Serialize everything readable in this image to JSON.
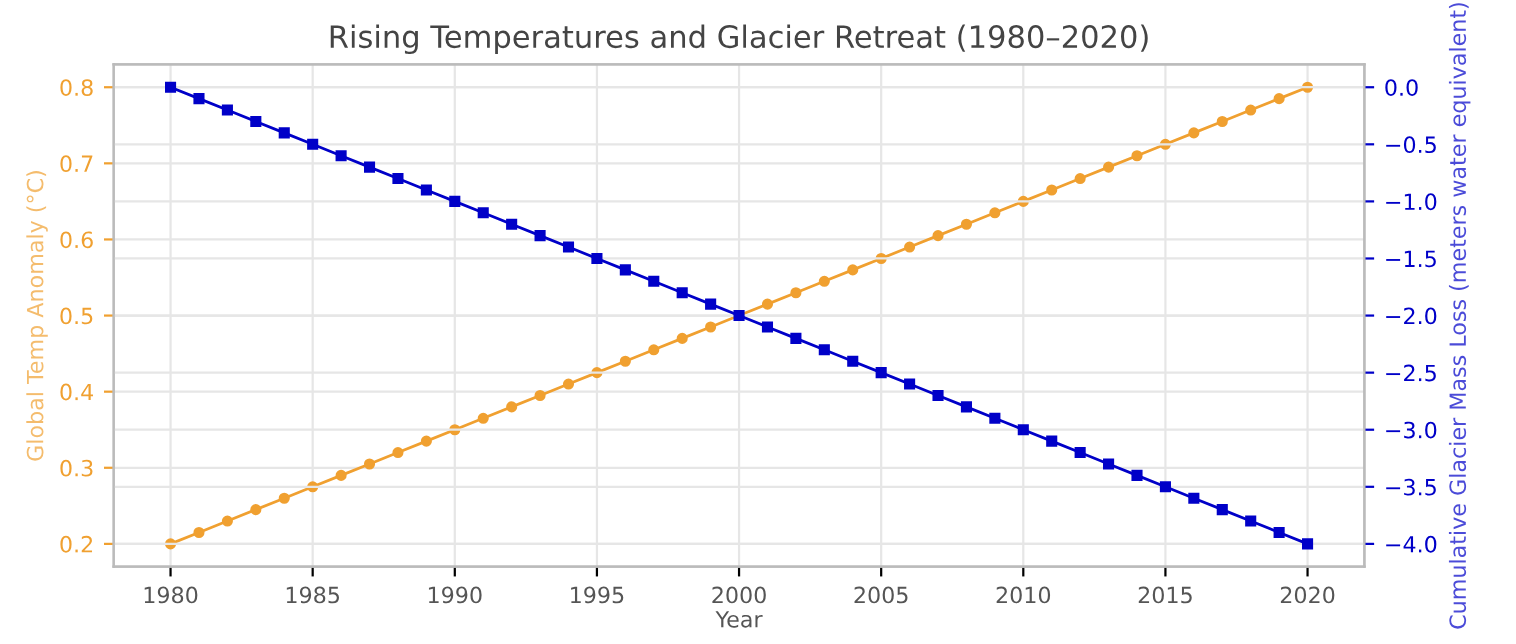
{
  "chart_data": {
    "type": "line",
    "title": "Rising Temperatures and Glacier Retreat (1980–2020)",
    "xlabel": "Year",
    "ylabel": "Global Temp Anomaly (°C)",
    "y2label": "Cumulative Glacier Mass Loss (meters water equivalent)",
    "x": [
      1980,
      1981,
      1982,
      1983,
      1984,
      1985,
      1986,
      1987,
      1988,
      1989,
      1990,
      1991,
      1992,
      1993,
      1994,
      1995,
      1996,
      1997,
      1998,
      1999,
      2000,
      2001,
      2002,
      2003,
      2004,
      2005,
      2006,
      2007,
      2008,
      2009,
      2010,
      2011,
      2012,
      2013,
      2014,
      2015,
      2016,
      2017,
      2018,
      2019,
      2020
    ],
    "series": [
      {
        "color": "#f0a030",
        "marker": "circle",
        "values": [
          0.2,
          0.215,
          0.23,
          0.245,
          0.26,
          0.275,
          0.29,
          0.305,
          0.32,
          0.335,
          0.35,
          0.365,
          0.38,
          0.395,
          0.41,
          0.425,
          0.44,
          0.455,
          0.47,
          0.485,
          0.5,
          0.515,
          0.53,
          0.545,
          0.56,
          0.575,
          0.59,
          0.605,
          0.62,
          0.635,
          0.65,
          0.665,
          0.68,
          0.695,
          0.71,
          0.725,
          0.74,
          0.755,
          0.77,
          0.785,
          0.8
        ]
      },
      {
        "color": "#0000c8",
        "marker": "square",
        "axis": "y2",
        "values": [
          0.0,
          -0.1,
          -0.2,
          -0.3,
          -0.4,
          -0.5,
          -0.6,
          -0.7,
          -0.8,
          -0.9,
          -1.0,
          -1.1,
          -1.2,
          -1.3,
          -1.4,
          -1.5,
          -1.6,
          -1.7,
          -1.8,
          -1.9,
          -2.0,
          -2.1,
          -2.2,
          -2.3,
          -2.4,
          -2.5,
          -2.6,
          -2.7,
          -2.8,
          -2.9,
          -3.0,
          -3.1,
          -3.2,
          -3.3,
          -3.4,
          -3.5,
          -3.6,
          -3.7,
          -3.8,
          -3.9,
          -4.0
        ]
      }
    ],
    "xlim": [
      1978,
      2022
    ],
    "xticks": [
      1980,
      1985,
      1990,
      1995,
      2000,
      2005,
      2010,
      2015,
      2020
    ],
    "ylim": [
      0.17,
      0.83
    ],
    "yticks": [
      0.2,
      0.3,
      0.4,
      0.5,
      0.6,
      0.7,
      0.8
    ],
    "y2lim": [
      -4.2,
      0.2
    ],
    "y2ticks": [
      {
        "value": -4.0,
        "label": "−4.0"
      },
      {
        "value": -3.5,
        "label": "−3.5"
      },
      {
        "value": -3.0,
        "label": "−3.0"
      },
      {
        "value": -2.5,
        "label": "−2.5"
      },
      {
        "value": -2.0,
        "label": "−2.0"
      },
      {
        "value": -1.5,
        "label": "−1.5"
      },
      {
        "value": -1.0,
        "label": "−1.0"
      },
      {
        "value": -0.5,
        "label": "−0.5"
      },
      {
        "value": 0.0,
        "label": "0.0"
      }
    ],
    "grid": true,
    "legend": false,
    "line_style": "solid"
  }
}
